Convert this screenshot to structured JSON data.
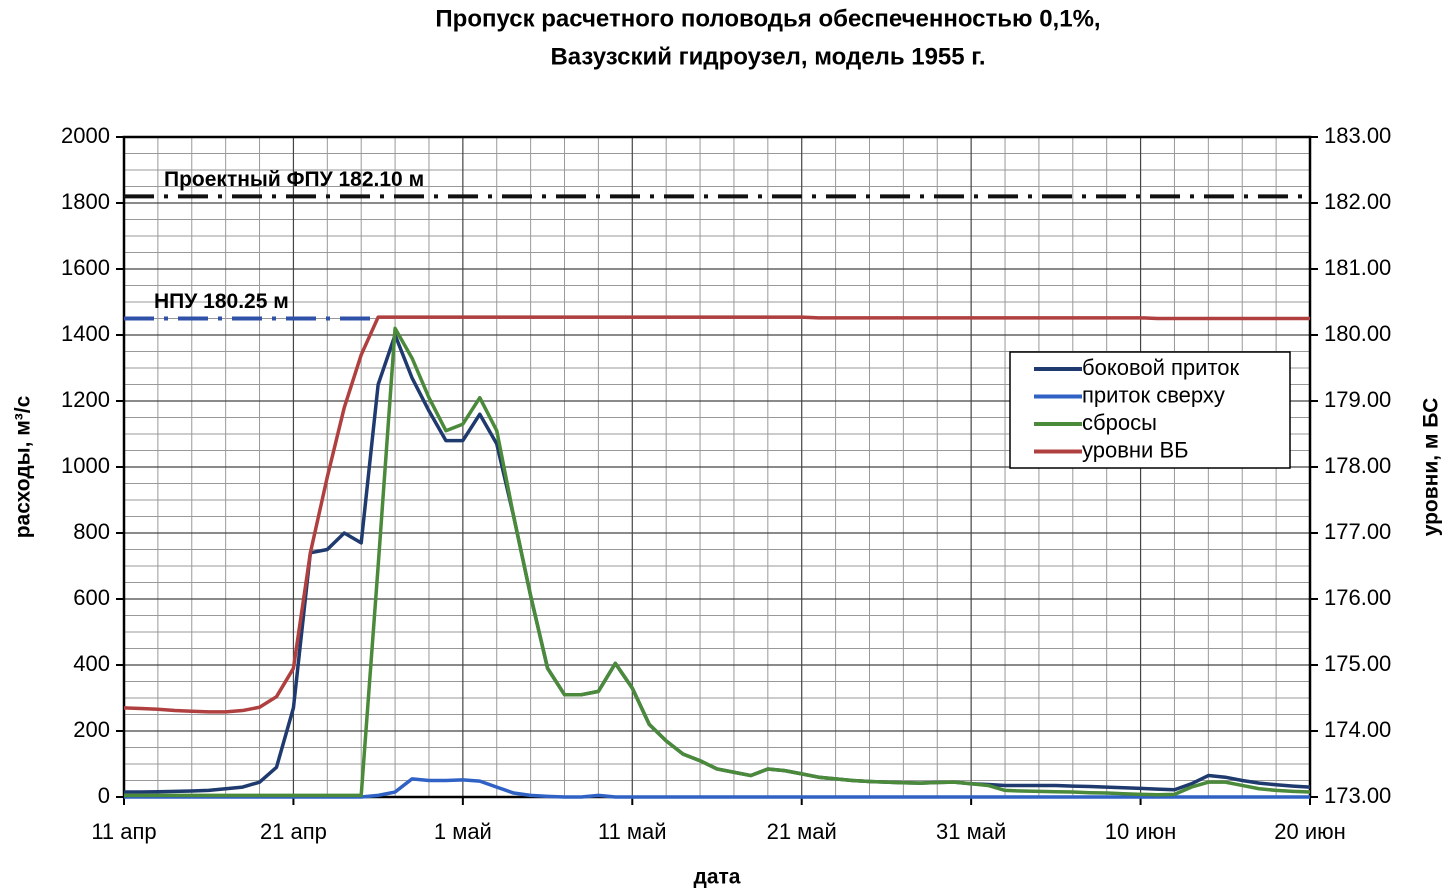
{
  "chart_data": {
    "type": "line",
    "title": [
      "Пропуск расчетного половодья обеспеченностью 0,1%,",
      "Вазузский гидроузел, модель 1955 г."
    ],
    "xlabel": "дата",
    "ylabel": "расходы, м³/с",
    "y2label": "уровни, м БС",
    "x": [
      0,
      1,
      2,
      3,
      4,
      5,
      6,
      7,
      8,
      9,
      10,
      11,
      12,
      13,
      14,
      15,
      16,
      17,
      18,
      19,
      20,
      21,
      22,
      23,
      24,
      25,
      26,
      27,
      28,
      29,
      30,
      31,
      32,
      33,
      34,
      35,
      36,
      37,
      38,
      39,
      40,
      41,
      42,
      43,
      44,
      45,
      46,
      47,
      48,
      49,
      50,
      51,
      52,
      53,
      54,
      55,
      56,
      57,
      58,
      59,
      60,
      61,
      62,
      63,
      64,
      65,
      66,
      67,
      68,
      69,
      70
    ],
    "xlim": [
      0,
      70
    ],
    "xticks": [
      {
        "value": 0,
        "label": "11 апр"
      },
      {
        "value": 10,
        "label": "21 апр"
      },
      {
        "value": 20,
        "label": "1 май"
      },
      {
        "value": 30,
        "label": "11 май"
      },
      {
        "value": 40,
        "label": "21 май"
      },
      {
        "value": 50,
        "label": "31 май"
      },
      {
        "value": 60,
        "label": "10 июн"
      },
      {
        "value": 70,
        "label": "20 июн"
      }
    ],
    "ylim": [
      0,
      2000
    ],
    "yticks": [
      0,
      200,
      400,
      600,
      800,
      1000,
      1200,
      1400,
      1600,
      1800,
      2000
    ],
    "y2lim": [
      173,
      183
    ],
    "y2ticks": [
      {
        "value": 173,
        "label": "173.00"
      },
      {
        "value": 174,
        "label": "174.00"
      },
      {
        "value": 175,
        "label": "175.00"
      },
      {
        "value": 176,
        "label": "176.00"
      },
      {
        "value": 177,
        "label": "177.00"
      },
      {
        "value": 178,
        "label": "178.00"
      },
      {
        "value": 179,
        "label": "179.00"
      },
      {
        "value": 180,
        "label": "180.00"
      },
      {
        "value": 181,
        "label": "181.00"
      },
      {
        "value": 182,
        "label": "182.00"
      },
      {
        "value": 183,
        "label": "183.00"
      }
    ],
    "grid": true,
    "legend": "right",
    "series": [
      {
        "name": "боковой приток",
        "color": "#1f3a6e",
        "values": [
          15,
          15,
          16,
          17,
          18,
          20,
          25,
          30,
          45,
          90,
          270,
          740,
          750,
          800,
          770,
          1250,
          1400,
          1270,
          1170,
          1080,
          1080,
          1160,
          1070,
          850,
          610,
          390,
          310,
          310,
          320,
          405,
          330,
          220,
          170,
          130,
          110,
          85,
          75,
          65,
          85,
          80,
          70,
          60,
          55,
          50,
          47,
          45,
          43,
          42,
          44,
          45,
          40,
          38,
          35,
          35,
          35,
          35,
          33,
          32,
          30,
          28,
          26,
          24,
          22,
          40,
          65,
          60,
          50,
          42,
          37,
          33,
          30
        ]
      },
      {
        "name": "приток сверху",
        "color": "#2f62c4",
        "values": [
          0,
          0,
          0,
          0,
          0,
          0,
          0,
          0,
          0,
          0,
          0,
          0,
          0,
          0,
          0,
          5,
          15,
          55,
          50,
          50,
          52,
          48,
          30,
          12,
          5,
          2,
          0,
          0,
          5,
          0,
          0,
          0,
          0,
          0,
          0,
          0,
          0,
          0,
          0,
          0,
          0,
          0,
          0,
          0,
          0,
          0,
          0,
          0,
          0,
          0,
          0,
          0,
          0,
          0,
          0,
          0,
          0,
          0,
          0,
          0,
          0,
          0,
          0,
          0,
          0,
          0,
          0,
          0,
          0,
          0,
          0
        ]
      },
      {
        "name": "сбросы",
        "color": "#4a8a3a",
        "values": [
          5,
          5,
          5,
          5,
          5,
          5,
          5,
          5,
          5,
          5,
          5,
          5,
          5,
          5,
          5,
          700,
          1420,
          1330,
          1210,
          1110,
          1130,
          1210,
          1110,
          850,
          610,
          390,
          310,
          310,
          320,
          405,
          330,
          220,
          170,
          130,
          110,
          85,
          75,
          65,
          85,
          80,
          70,
          60,
          55,
          50,
          47,
          45,
          43,
          42,
          44,
          45,
          40,
          35,
          20,
          18,
          17,
          16,
          15,
          13,
          12,
          10,
          8,
          7,
          8,
          30,
          45,
          45,
          35,
          25,
          20,
          17,
          15
        ]
      },
      {
        "name": "уровни ВБ",
        "color": "#b04040",
        "axis": "y2",
        "values": [
          174.35,
          174.34,
          174.33,
          174.31,
          174.3,
          174.29,
          174.29,
          174.31,
          174.36,
          174.52,
          174.95,
          176.7,
          177.85,
          178.9,
          179.7,
          180.27,
          180.27,
          180.27,
          180.27,
          180.27,
          180.27,
          180.27,
          180.27,
          180.27,
          180.27,
          180.27,
          180.27,
          180.27,
          180.27,
          180.27,
          180.27,
          180.27,
          180.27,
          180.27,
          180.27,
          180.27,
          180.27,
          180.27,
          180.27,
          180.27,
          180.27,
          180.26,
          180.26,
          180.26,
          180.26,
          180.26,
          180.26,
          180.26,
          180.26,
          180.26,
          180.26,
          180.26,
          180.26,
          180.26,
          180.26,
          180.26,
          180.26,
          180.26,
          180.26,
          180.26,
          180.26,
          180.25,
          180.25,
          180.25,
          180.25,
          180.25,
          180.25,
          180.25,
          180.25,
          180.25,
          180.25
        ]
      }
    ],
    "hlines": [
      {
        "label": "Проектный ФПУ 182.10 м",
        "value": 182.1,
        "axis": "y2",
        "color": "#111111",
        "x_range": [
          0,
          70
        ]
      },
      {
        "label": "НПУ 180.25 м",
        "value": 180.25,
        "axis": "y2",
        "color": "#2f52a8",
        "x_range": [
          0,
          15
        ]
      }
    ]
  }
}
